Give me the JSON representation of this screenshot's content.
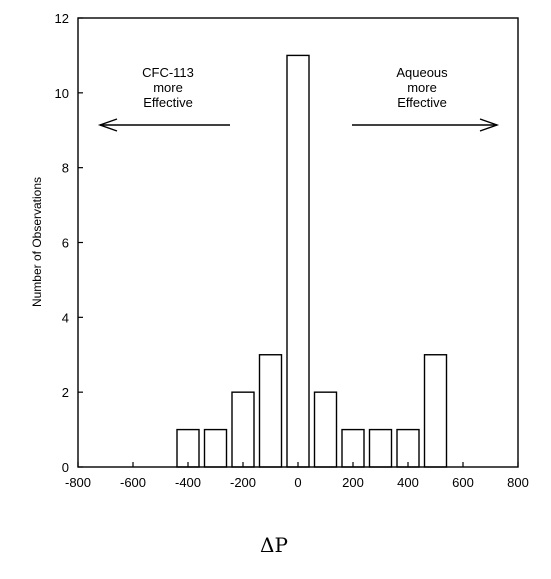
{
  "chart_data": {
    "type": "bar",
    "x": [
      -400,
      -300,
      -200,
      -100,
      0,
      100,
      200,
      300,
      400,
      500
    ],
    "values": [
      1,
      1,
      2,
      3,
      11,
      2,
      1,
      1,
      1,
      3
    ],
    "xlabel": "ΔP",
    "ylabel": "Number of Observations",
    "xlim": [
      -800,
      800
    ],
    "ylim": [
      0,
      12
    ],
    "xticks": [
      -800,
      -600,
      -400,
      -200,
      0,
      200,
      400,
      600,
      800
    ],
    "yticks": [
      0,
      2,
      4,
      6,
      8,
      10,
      12
    ],
    "grid": false,
    "annotations": [
      {
        "lines": [
          "CFC-113",
          "more",
          "Effective"
        ],
        "arrow": "left"
      },
      {
        "lines": [
          "Aqueous",
          "more",
          "Effective"
        ],
        "arrow": "right"
      }
    ],
    "colors": {
      "bar_fill": "#ffffff",
      "stroke": "#000000"
    }
  }
}
